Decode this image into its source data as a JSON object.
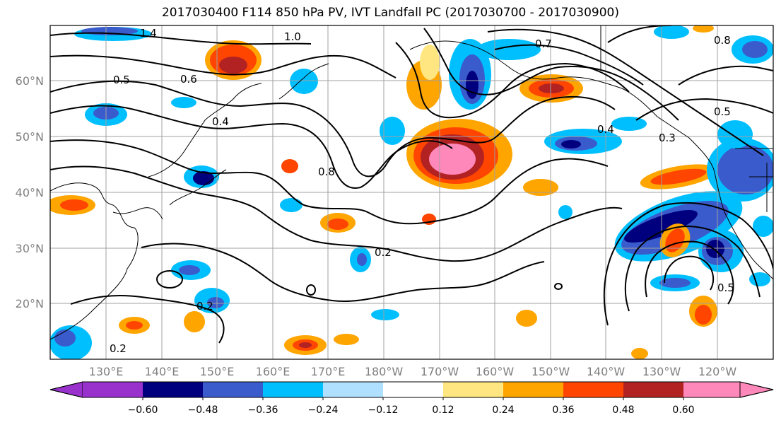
{
  "title": "2017030400 F114 850 hPa PV, IVT Landfall PC (2017030700 - 2017030900)",
  "map": {
    "lat_labels": [
      "60°N",
      "50°N",
      "40°N",
      "30°N",
      "20°N"
    ],
    "lon_labels": [
      "130°E",
      "140°E",
      "150°E",
      "160°E",
      "170°E",
      "180°W",
      "170°W",
      "160°W",
      "150°W",
      "140°W",
      "130°W",
      "120°W"
    ],
    "contour_labels": [
      "1.4",
      "1.0",
      "0.7",
      "0.8",
      "0.6",
      "0.4",
      "0.5",
      "0.3",
      "0.8",
      "0.4",
      "0.5",
      "0.2",
      "0.2",
      "0.5",
      "0.2"
    ],
    "colors": {
      "dark_purple": "#9932cc",
      "navy": "#00007f",
      "blue": "#3a5bcb",
      "deep_sky": "#00bfff",
      "light_blue": "#b0e0ff",
      "white": "#ffffff",
      "light_yellow": "#ffe680",
      "orange": "#ffa500",
      "red_orange": "#ff4500",
      "dark_red": "#b22222",
      "pink": "#ff88bb"
    }
  },
  "colorbar": {
    "levels": [
      "−0.60",
      "−0.48",
      "−0.36",
      "−0.24",
      "−0.12",
      "0.12",
      "0.24",
      "0.36",
      "0.48",
      "0.60"
    ],
    "colors": [
      "#9932cc",
      "#00007f",
      "#3a5bcb",
      "#00bfff",
      "#b0e0ff",
      "#ffffff",
      "#ffe680",
      "#ffa500",
      "#ff4500",
      "#b22222",
      "#ff88bb"
    ]
  }
}
